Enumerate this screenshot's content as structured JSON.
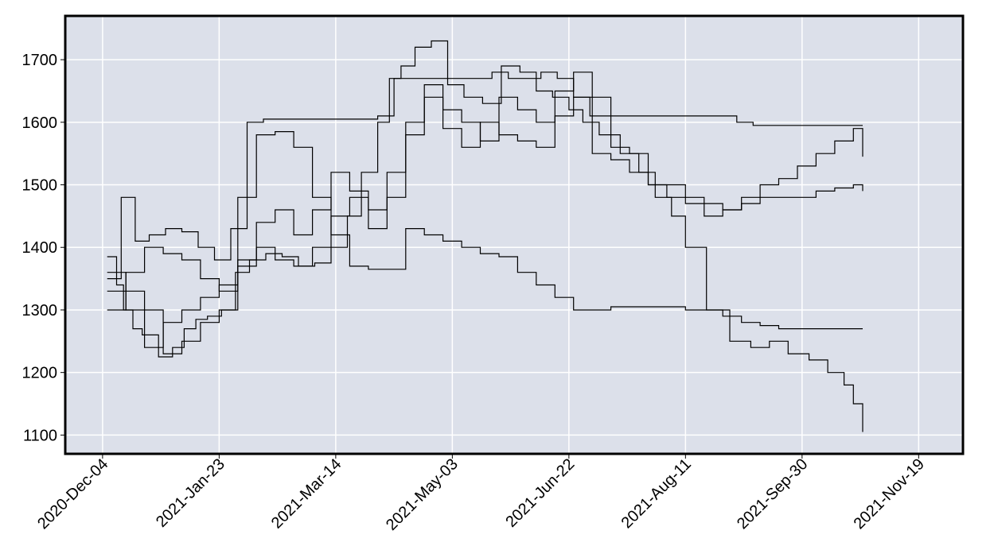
{
  "chart_data": {
    "type": "line",
    "title": "",
    "xlabel": "",
    "ylabel": "",
    "x_ticks": [
      "2020-Dec-04",
      "2021-Jan-23",
      "2021-Mar-14",
      "2021-May-03",
      "2021-Jun-22",
      "2021-Aug-11",
      "2021-Sep-30",
      "2021-Nov-19"
    ],
    "y_ticks": [
      1100,
      1200,
      1300,
      1400,
      1500,
      1600,
      1700
    ],
    "xlim": [
      "2020-Nov-18",
      "2021-Dec-08"
    ],
    "ylim": [
      1070,
      1770
    ],
    "grid": true,
    "legend": false,
    "colors": {
      "background": "#dce0ea",
      "grid": "#ffffff",
      "line": "#000000",
      "frame": "#000000"
    },
    "series": [
      {
        "x": [
          "2020-Dec-06",
          "2020-Dec-10",
          "2020-Dec-13",
          "2020-Dec-17",
          "2020-Dec-21",
          "2020-Dec-28",
          "2021-Jan-03",
          "2021-Jan-08",
          "2021-Jan-13",
          "2021-Jan-18",
          "2021-Jan-24",
          "2021-Jan-30",
          "2021-Feb-05",
          "2021-Feb-12",
          "2021-Feb-19",
          "2021-Feb-26",
          "2021-Mar-05",
          "2021-Mar-12",
          "2021-Mar-19",
          "2021-Mar-25",
          "2021-Apr-01",
          "2021-Apr-06",
          "2021-Apr-11",
          "2021-Apr-17",
          "2021-Apr-24",
          "2021-May-01",
          "2021-May-08",
          "2021-May-16",
          "2021-May-24",
          "2021-Jun-01",
          "2021-Jun-08",
          "2021-Jun-15",
          "2021-Jun-22",
          "2021-Jun-28",
          "2021-Jul-05",
          "2021-Jul-14",
          "2021-Jul-22",
          "2021-Jul-29",
          "2021-Aug-05",
          "2021-Aug-11",
          "2021-Aug-20",
          "2021-Aug-30",
          "2021-Sep-08",
          "2021-Sep-16",
          "2021-Sep-24",
          "2021-Oct-03",
          "2021-Oct-11",
          "2021-Oct-18",
          "2021-Oct-22",
          "2021-Oct-26"
        ],
        "values": [
          1385,
          1340,
          1300,
          1270,
          1260,
          1225,
          1240,
          1270,
          1285,
          1290,
          1300,
          1360,
          1380,
          1390,
          1385,
          1370,
          1375,
          1400,
          1450,
          1520,
          1600,
          1670,
          1690,
          1720,
          1730,
          1660,
          1640,
          1630,
          1690,
          1680,
          1650,
          1640,
          1620,
          1600,
          1580,
          1550,
          1520,
          1480,
          1450,
          1400,
          1300,
          1250,
          1240,
          1250,
          1230,
          1220,
          1200,
          1180,
          1150,
          1105
        ]
      },
      {
        "x": [
          "2020-Dec-06",
          "2020-Dec-12",
          "2020-Dec-18",
          "2020-Dec-24",
          "2020-Dec-31",
          "2021-Jan-07",
          "2021-Jan-14",
          "2021-Jan-21",
          "2021-Jan-28",
          "2021-Feb-04",
          "2021-Feb-11",
          "2021-Feb-18",
          "2021-Feb-25",
          "2021-Mar-04",
          "2021-Mar-11",
          "2021-Mar-18",
          "2021-Mar-25",
          "2021-Apr-01",
          "2021-Apr-08",
          "2021-Apr-15",
          "2021-Apr-22",
          "2021-Apr-29",
          "2021-May-06",
          "2021-May-13",
          "2021-May-20",
          "2021-May-27",
          "2021-Jun-03",
          "2021-Jun-10",
          "2021-Jun-17",
          "2021-Jun-24",
          "2021-Jul-01",
          "2021-Jul-08",
          "2021-Jul-15",
          "2021-Jul-22",
          "2021-Jul-29",
          "2021-Aug-05",
          "2021-Aug-12",
          "2021-Aug-19",
          "2021-Aug-26",
          "2021-Sep-02",
          "2021-Sep-09",
          "2021-Sep-16",
          "2021-Sep-23",
          "2021-Sep-30",
          "2021-Oct-07",
          "2021-Oct-14",
          "2021-Oct-21",
          "2021-Oct-26"
        ],
        "values": [
          1350,
          1480,
          1410,
          1420,
          1430,
          1425,
          1400,
          1380,
          1430,
          1600,
          1605,
          1605,
          1605,
          1605,
          1605,
          1605,
          1605,
          1610,
          1670,
          1670,
          1670,
          1670,
          1670,
          1670,
          1680,
          1670,
          1670,
          1680,
          1670,
          1640,
          1610,
          1610,
          1610,
          1610,
          1610,
          1610,
          1610,
          1610,
          1610,
          1600,
          1595,
          1595,
          1595,
          1595,
          1595,
          1595,
          1595,
          1595
        ]
      },
      {
        "x": [
          "2020-Dec-06",
          "2020-Dec-14",
          "2020-Dec-22",
          "2020-Dec-30",
          "2021-Jan-07",
          "2021-Jan-15",
          "2021-Jan-23",
          "2021-Jan-31",
          "2021-Feb-08",
          "2021-Feb-16",
          "2021-Feb-24",
          "2021-Mar-04",
          "2021-Mar-12",
          "2021-Mar-20",
          "2021-Mar-28",
          "2021-Apr-05",
          "2021-Apr-13",
          "2021-Apr-21",
          "2021-Apr-29",
          "2021-May-07",
          "2021-May-15",
          "2021-May-23",
          "2021-May-31",
          "2021-Jun-08",
          "2021-Jun-16",
          "2021-Jun-24",
          "2021-Jul-02",
          "2021-Jul-10",
          "2021-Jul-18",
          "2021-Jul-26",
          "2021-Aug-03",
          "2021-Aug-11",
          "2021-Aug-19",
          "2021-Aug-27",
          "2021-Sep-04",
          "2021-Sep-12",
          "2021-Sep-20",
          "2021-Sep-28",
          "2021-Oct-06",
          "2021-Oct-14",
          "2021-Oct-22",
          "2021-Oct-26"
        ],
        "values": [
          1360,
          1330,
          1300,
          1230,
          1250,
          1280,
          1300,
          1480,
          1580,
          1585,
          1560,
          1480,
          1420,
          1370,
          1365,
          1365,
          1430,
          1420,
          1410,
          1400,
          1390,
          1385,
          1360,
          1340,
          1320,
          1300,
          1300,
          1305,
          1305,
          1305,
          1305,
          1300,
          1300,
          1290,
          1280,
          1275,
          1270,
          1270,
          1270,
          1270,
          1270,
          1270
        ]
      },
      {
        "x": [
          "2020-Dec-06",
          "2020-Dec-14",
          "2020-Dec-22",
          "2020-Dec-30",
          "2021-Jan-07",
          "2021-Jan-15",
          "2021-Jan-23",
          "2021-Jan-31",
          "2021-Feb-08",
          "2021-Feb-16",
          "2021-Feb-24",
          "2021-Mar-04",
          "2021-Mar-12",
          "2021-Mar-20",
          "2021-Mar-28",
          "2021-Apr-05",
          "2021-Apr-13",
          "2021-Apr-21",
          "2021-Apr-29",
          "2021-May-07",
          "2021-May-15",
          "2021-May-23",
          "2021-May-31",
          "2021-Jun-08",
          "2021-Jun-16",
          "2021-Jun-24",
          "2021-Jul-02",
          "2021-Jul-10",
          "2021-Jul-18",
          "2021-Jul-26",
          "2021-Aug-03",
          "2021-Aug-11",
          "2021-Aug-19",
          "2021-Aug-27",
          "2021-Sep-04",
          "2021-Sep-12",
          "2021-Sep-20",
          "2021-Sep-28",
          "2021-Oct-06",
          "2021-Oct-14",
          "2021-Oct-22",
          "2021-Oct-26"
        ],
        "values": [
          1330,
          1300,
          1240,
          1280,
          1300,
          1320,
          1340,
          1380,
          1440,
          1460,
          1420,
          1460,
          1520,
          1490,
          1460,
          1520,
          1600,
          1640,
          1590,
          1560,
          1600,
          1580,
          1570,
          1560,
          1610,
          1640,
          1550,
          1540,
          1520,
          1500,
          1480,
          1470,
          1450,
          1460,
          1480,
          1500,
          1510,
          1530,
          1550,
          1570,
          1590,
          1545
        ]
      },
      {
        "x": [
          "2020-Dec-06",
          "2020-Dec-14",
          "2020-Dec-22",
          "2020-Dec-30",
          "2021-Jan-07",
          "2021-Jan-15",
          "2021-Jan-23",
          "2021-Jan-31",
          "2021-Feb-08",
          "2021-Feb-16",
          "2021-Feb-24",
          "2021-Mar-04",
          "2021-Mar-12",
          "2021-Mar-20",
          "2021-Mar-28",
          "2021-Apr-05",
          "2021-Apr-13",
          "2021-Apr-21",
          "2021-Apr-29",
          "2021-May-07",
          "2021-May-15",
          "2021-May-23",
          "2021-May-31",
          "2021-Jun-08",
          "2021-Jun-16",
          "2021-Jun-24",
          "2021-Jul-02",
          "2021-Jul-10",
          "2021-Jul-18",
          "2021-Jul-26",
          "2021-Aug-03",
          "2021-Aug-11",
          "2021-Aug-19",
          "2021-Aug-27",
          "2021-Sep-04",
          "2021-Sep-12",
          "2021-Sep-20",
          "2021-Sep-28",
          "2021-Oct-06",
          "2021-Oct-14",
          "2021-Oct-22",
          "2021-Oct-26"
        ],
        "values": [
          1300,
          1360,
          1400,
          1390,
          1380,
          1350,
          1330,
          1370,
          1400,
          1380,
          1370,
          1400,
          1450,
          1480,
          1430,
          1480,
          1580,
          1660,
          1620,
          1600,
          1570,
          1640,
          1620,
          1600,
          1650,
          1680,
          1640,
          1560,
          1550,
          1500,
          1500,
          1480,
          1470,
          1460,
          1470,
          1480,
          1480,
          1480,
          1490,
          1495,
          1500,
          1490
        ]
      }
    ]
  }
}
